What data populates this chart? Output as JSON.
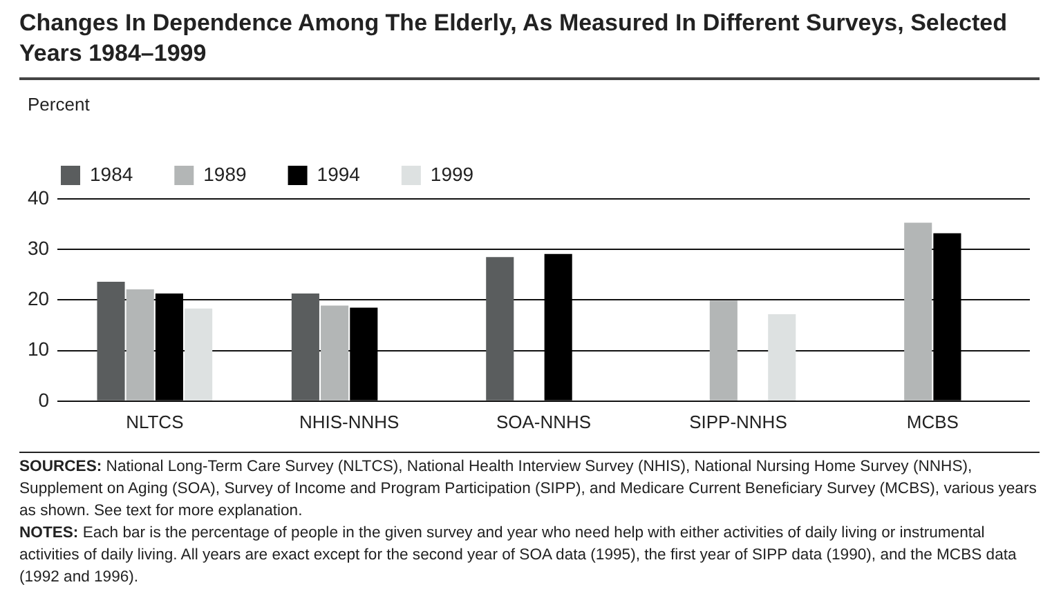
{
  "chart_data": {
    "type": "bar",
    "title": "Changes In Dependence Among The Elderly, As Measured In Different Surveys, Selected Years 1984–1999",
    "ylabel": "Percent",
    "categories": [
      "NLTCS",
      "NHIS-NNHS",
      "SOA-NNHS",
      "SIPP-NNHS",
      "MCBS"
    ],
    "series": [
      {
        "name": "1984",
        "color": "#5a5d5e",
        "values": [
          23.6,
          21.3,
          28.5,
          null,
          null
        ]
      },
      {
        "name": "1989",
        "color": "#b3b6b6",
        "values": [
          22.1,
          18.9,
          null,
          19.9,
          35.3
        ]
      },
      {
        "name": "1994",
        "color": "#000000",
        "values": [
          21.3,
          18.5,
          29.1,
          null,
          33.2
        ]
      },
      {
        "name": "1999",
        "color": "#dde1e1",
        "values": [
          18.3,
          null,
          null,
          17.2,
          null
        ]
      }
    ],
    "ylim": [
      0,
      40
    ],
    "yticks": [
      0,
      10,
      20,
      30,
      40
    ],
    "grid": "y",
    "legend": "top left",
    "annotations": [
      "SOURCES: National Long-Term Care Survey (NLTCS), National Health Interview Survey (NHIS), National Nursing Home Survey (NNHS), Supplement on Aging (SOA), Survey of Income and Program Participation (SIPP), and Medicare Current Beneficiary Survey (MCBS), various years as shown. See text for more explanation.",
      "NOTES: Each bar is the percentage of people in the given survey and year who need help with either activities of daily living or instrumental activities of daily living. All years are exact except for the second year of SOA data (1995), the first year of SIPP data (1990), and the MCBS data (1992 and 1996)."
    ]
  }
}
